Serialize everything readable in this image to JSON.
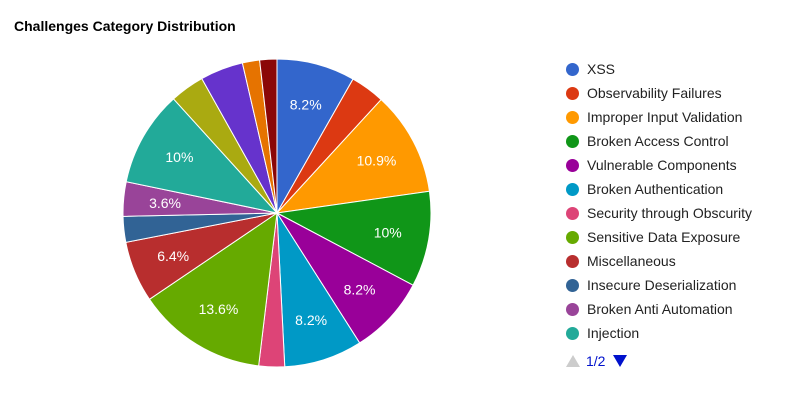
{
  "chart_data": {
    "type": "pie",
    "title": "Challenges Category Distribution",
    "categories": [
      "XSS",
      "Observability Failures",
      "Improper Input Validation",
      "Broken Access Control",
      "Vulnerable Components",
      "Broken Authentication",
      "Security through Obscurity",
      "Sensitive Data Exposure",
      "Miscellaneous",
      "Insecure Deserialization",
      "Broken Anti Automation",
      "Injection",
      "",
      "",
      "",
      ""
    ],
    "values": [
      8.2,
      3.6,
      10.9,
      10,
      8.2,
      8.2,
      2.7,
      13.6,
      6.4,
      2.7,
      3.6,
      10,
      3.6,
      4.5,
      1.8,
      1.8
    ],
    "labels": [
      "8.2%",
      "",
      "10.9%",
      "10%",
      "8.2%",
      "8.2%",
      "",
      "13.6%",
      "6.4%",
      "",
      "3.6%",
      "10%",
      "",
      "",
      "",
      ""
    ],
    "colors": [
      "#3366cc",
      "#dc3912",
      "#ff9900",
      "#109618",
      "#990099",
      "#0099c6",
      "#dd4477",
      "#66aa00",
      "#b82e2e",
      "#316395",
      "#994499",
      "#22aa99",
      "#aaaa11",
      "#6633cc",
      "#e67300",
      "#8b0707"
    ],
    "legend_position": "right",
    "legend_visible_count": 12
  },
  "pager": {
    "text": "1/2"
  }
}
